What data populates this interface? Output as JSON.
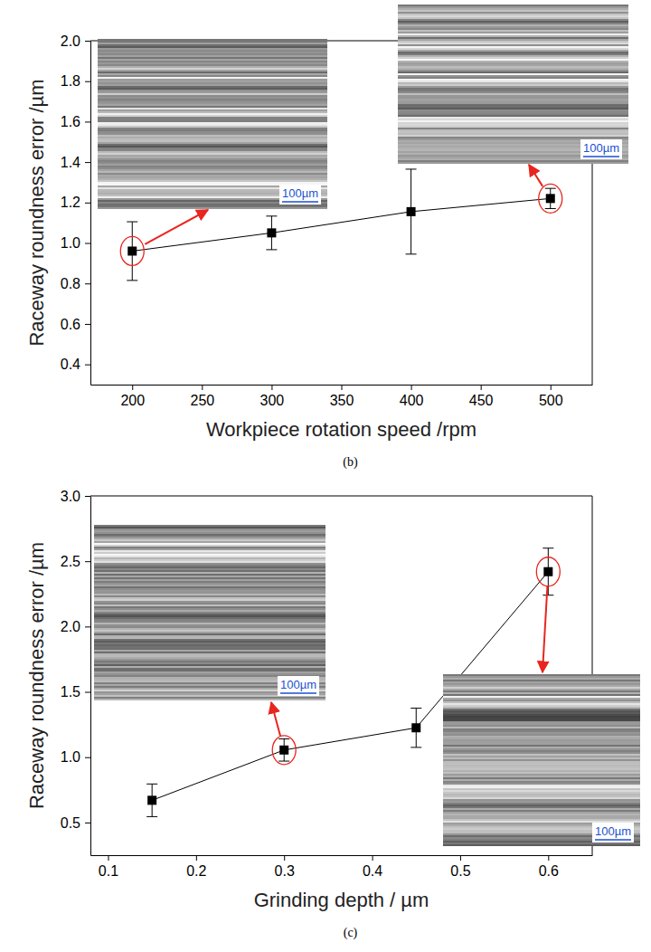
{
  "chart_data": [
    {
      "type": "line",
      "title": "(b)",
      "x_label": "Workpiece rotation speed /rpm",
      "y_label": "Raceway roundness error /µm",
      "x": [
        200,
        300,
        400,
        500
      ],
      "values": [
        0.96,
        1.05,
        1.155,
        1.22
      ],
      "errors": [
        0.145,
        0.083,
        0.21,
        0.05
      ],
      "color": "#000000",
      "marker": "square",
      "line_style": "solid",
      "grid": false,
      "xlim": [
        170,
        530
      ],
      "xticks": [
        200,
        250,
        300,
        350,
        400,
        450,
        500
      ],
      "ylim": [
        0.3,
        2.0
      ],
      "yticks": [
        0.4,
        0.6,
        0.8,
        {
          "value": 1.0,
          "label": "1.0"
        },
        1.2,
        1.4,
        1.6,
        1.8,
        {
          "value": 2.0,
          "label": "2.0"
        }
      ],
      "annotations": [
        "100µm",
        "100µm"
      ]
    },
    {
      "type": "line",
      "title": "(c)",
      "x_label": "Grinding depth / µm",
      "y_label": "Raceway roundness error /µm",
      "x": [
        0.15,
        0.3,
        0.45,
        0.6
      ],
      "values": [
        0.67,
        1.055,
        1.225,
        2.42
      ],
      "errors": [
        0.125,
        0.085,
        0.15,
        0.18
      ],
      "color": "#000000",
      "marker": "square",
      "line_style": "solid",
      "grid": false,
      "xlim": [
        0.08,
        0.65
      ],
      "xticks": [
        0.1,
        0.2,
        0.3,
        0.4,
        0.5,
        0.6
      ],
      "ylim": [
        0.25,
        3.0
      ],
      "yticks": [
        0.5,
        {
          "value": 1.0,
          "label": "1.0"
        },
        1.5,
        {
          "value": 2.0,
          "label": "2.0"
        },
        2.5,
        {
          "value": 3.0,
          "label": "3.0"
        }
      ],
      "annotations": [
        "100µm",
        "100µm"
      ]
    }
  ]
}
